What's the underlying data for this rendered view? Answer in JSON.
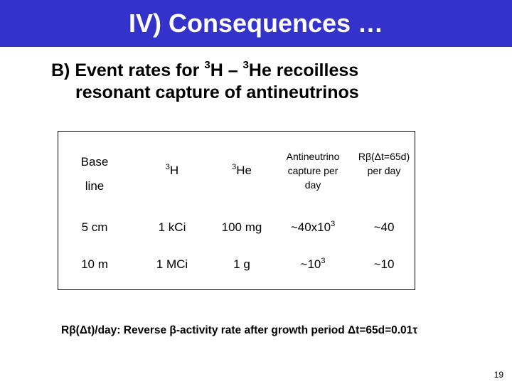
{
  "header": {
    "title": "IV) Consequences …"
  },
  "subtitle": {
    "prefix": "B) Event rates for ",
    "iso1_mass": "3",
    "iso1_symbol": "H – ",
    "iso2_mass": "3",
    "iso2_symbol": "He recoilless",
    "line2": "resonant capture of antineutrinos"
  },
  "table": {
    "headers": {
      "baseline_1": "Base",
      "baseline_2": "line",
      "h3_mass": "3",
      "h3_symbol": "H",
      "he3_mass": "3",
      "he3_symbol": "He",
      "capture_1": "Antineutrino",
      "capture_2": "capture per",
      "capture_3": "day",
      "rbeta_1": "Rβ(Δt=65d)",
      "rbeta_2": "per day"
    },
    "rows": [
      {
        "baseline": "5 cm",
        "h3": "1 kCi",
        "he3": "100 mg",
        "capture_base": "~40x10",
        "capture_exp": "3",
        "rbeta": "~40"
      },
      {
        "baseline": "10 m",
        "h3": "1 MCi",
        "he3": "1 g",
        "capture_base": "~10",
        "capture_exp": "3",
        "rbeta": "~10"
      }
    ]
  },
  "footnote": {
    "text": "Rβ(Δt)/day:  Reverse β-activity rate after growth period Δt=65d=0.01τ"
  },
  "page": {
    "number": "19"
  }
}
